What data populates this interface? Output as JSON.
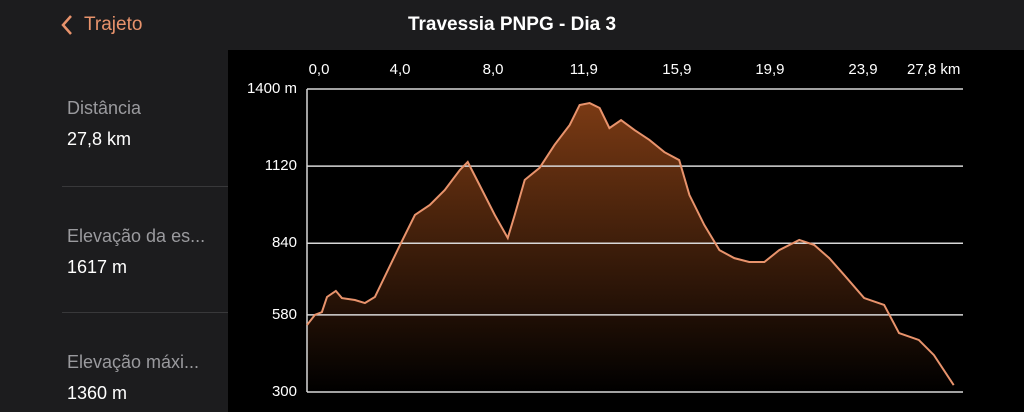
{
  "header": {
    "back": "Trajeto",
    "title": "Travessia PNPG - Dia 3"
  },
  "stats": [
    {
      "label": "Distância",
      "value": "27,8 km"
    },
    {
      "label": "Elevação da es...",
      "value": "1617 m"
    },
    {
      "label": "Elevação máxi...",
      "value": "1360 m"
    }
  ],
  "chart_data": {
    "type": "area",
    "color": "#e8936c",
    "fill": "#7a3a14",
    "grid": true,
    "x": [
      0,
      0.34,
      0.64,
      0.86,
      1.24,
      1.5,
      2.06,
      2.49,
      2.92,
      3.48,
      4.0,
      4.64,
      5.28,
      5.92,
      6.57,
      6.91,
      7.42,
      8.07,
      8.63,
      8.93,
      9.36,
      10.0,
      10.64,
      11.29,
      11.72,
      12.15,
      12.58,
      13.0,
      13.5,
      14.08,
      14.72,
      15.36,
      16.0,
      16.44,
      17.08,
      17.73,
      18.37,
      19.01,
      19.66,
      20.3,
      21.16,
      21.8,
      22.45,
      23.09,
      23.95,
      24.81,
      25.45,
      26.3,
      26.95,
      27.8
    ],
    "values": [
      543,
      580,
      590,
      645,
      667,
      641,
      634,
      623,
      645,
      743,
      834,
      943,
      979,
      1033,
      1106,
      1135,
      1051,
      943,
      859,
      943,
      1070,
      1114,
      1197,
      1269,
      1342,
      1349,
      1331,
      1258,
      1287,
      1251,
      1215,
      1171,
      1142,
      1015,
      906,
      815,
      786,
      772,
      772,
      815,
      852,
      834,
      786,
      725,
      641,
      616,
      514,
      489,
      434,
      325
    ],
    "xlim": [
      0,
      28.2
    ],
    "ylim": [
      300,
      1400
    ],
    "xticks": [
      {
        "value": 0,
        "label": "0,0"
      },
      {
        "value": 4,
        "label": "4,0"
      },
      {
        "value": 8,
        "label": "8,0"
      },
      {
        "value": 11.9,
        "label": "11,9"
      },
      {
        "value": 15.9,
        "label": "15,9"
      },
      {
        "value": 19.9,
        "label": "19,9"
      },
      {
        "value": 23.9,
        "label": "23,9"
      },
      {
        "value": 27.8,
        "label": "27,8 km"
      }
    ],
    "yticks": [
      {
        "value": 1400,
        "label": "1400 m"
      },
      1120,
      840,
      580,
      300
    ]
  }
}
